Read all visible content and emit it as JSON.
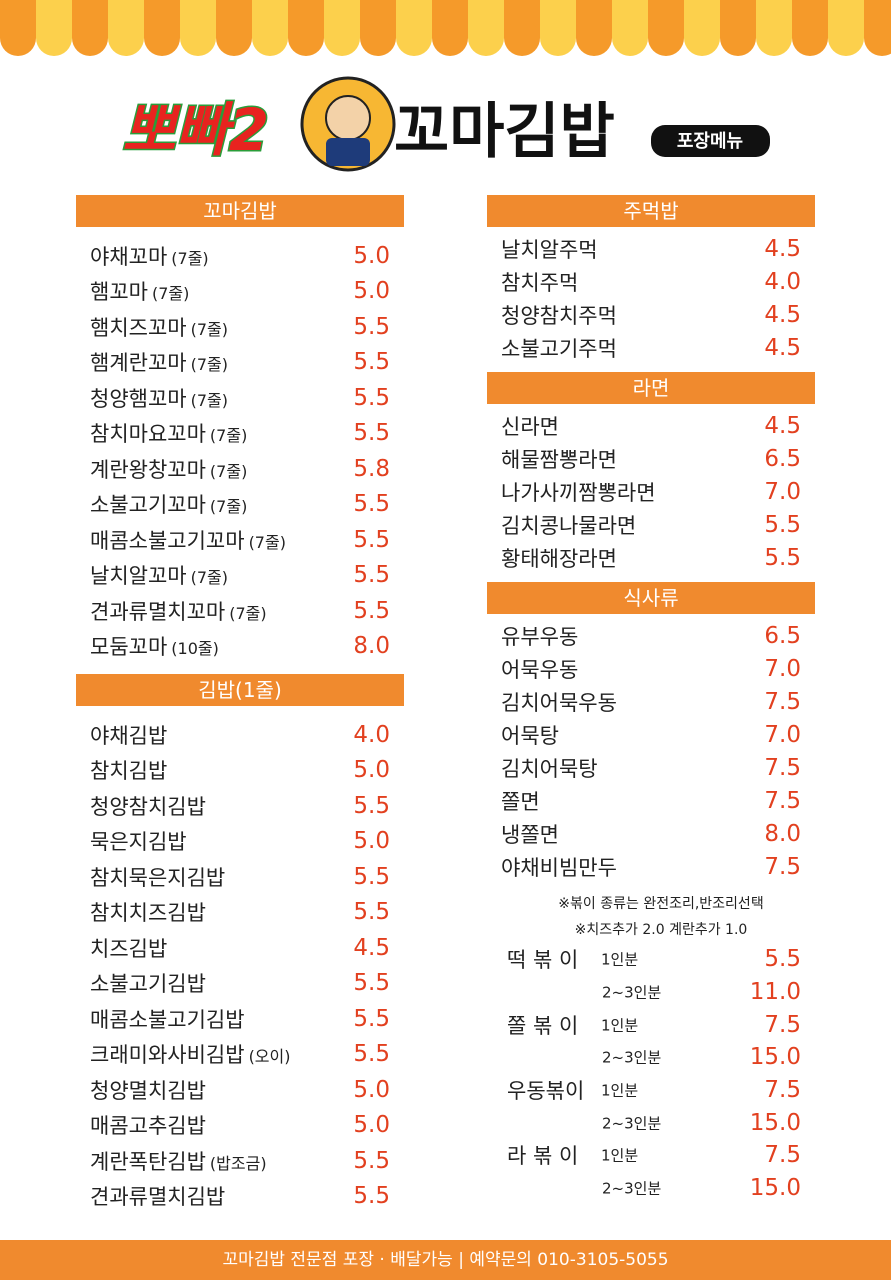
{
  "header": {
    "brand": "뽀빠2",
    "title": "꼬마김밥",
    "badge": "포장메뉴"
  },
  "left_sections": [
    {
      "title": "꼬마김밥",
      "items": [
        {
          "name": "야채꼬마",
          "note": "(7줄)",
          "price": "5.0"
        },
        {
          "name": "햄꼬마",
          "note": "(7줄)",
          "price": "5.0"
        },
        {
          "name": "햄치즈꼬마",
          "note": "(7줄)",
          "price": "5.5"
        },
        {
          "name": "햄계란꼬마",
          "note": "(7줄)",
          "price": "5.5"
        },
        {
          "name": "청양햄꼬마",
          "note": "(7줄)",
          "price": "5.5"
        },
        {
          "name": "참치마요꼬마",
          "note": "(7줄)",
          "price": "5.5"
        },
        {
          "name": "계란왕창꼬마",
          "note": "(7줄)",
          "price": "5.8"
        },
        {
          "name": "소불고기꼬마",
          "note": "(7줄)",
          "price": "5.5"
        },
        {
          "name": "매콤소불고기꼬마",
          "note": "(7줄)",
          "price": "5.5"
        },
        {
          "name": "날치알꼬마",
          "note": "(7줄)",
          "price": "5.5"
        },
        {
          "name": "견과류멸치꼬마",
          "note": "(7줄)",
          "price": "5.5"
        },
        {
          "name": "모둠꼬마",
          "note": "(10줄)",
          "price": "8.0"
        }
      ]
    },
    {
      "title": "김밥(1줄)",
      "items": [
        {
          "name": "야채김밥",
          "price": "4.0"
        },
        {
          "name": "참치김밥",
          "price": "5.0"
        },
        {
          "name": "청양참치김밥",
          "price": "5.5"
        },
        {
          "name": "묵은지김밥",
          "price": "5.0"
        },
        {
          "name": "참치묵은지김밥",
          "price": "5.5"
        },
        {
          "name": "참치치즈김밥",
          "price": "5.5"
        },
        {
          "name": "치즈김밥",
          "price": "4.5"
        },
        {
          "name": "소불고기김밥",
          "price": "5.5"
        },
        {
          "name": "매콤소불고기김밥",
          "price": "5.5"
        },
        {
          "name": "크래미와사비김밥",
          "note": "(오이)",
          "price": "5.5"
        },
        {
          "name": "청양멸치김밥",
          "price": "5.0"
        },
        {
          "name": "매콤고추김밥",
          "price": "5.0"
        },
        {
          "name": "계란폭탄김밥",
          "note": "(밥조금)",
          "price": "5.5"
        },
        {
          "name": "견과류멸치김밥",
          "price": "5.5"
        }
      ]
    }
  ],
  "right_sections": [
    {
      "title": "주먹밥",
      "items": [
        {
          "name": "날치알주먹",
          "price": "4.5"
        },
        {
          "name": "참치주먹",
          "price": "4.0"
        },
        {
          "name": "청양참치주먹",
          "price": "4.5"
        },
        {
          "name": "소불고기주먹",
          "price": "4.5"
        }
      ]
    },
    {
      "title": "라면",
      "items": [
        {
          "name": "신라면",
          "price": "4.5"
        },
        {
          "name": "해물짬뽕라면",
          "price": "6.5"
        },
        {
          "name": "나가사끼짬뽕라면",
          "price": "7.0"
        },
        {
          "name": "김치콩나물라면",
          "price": "5.5"
        },
        {
          "name": "황태해장라면",
          "price": "5.5"
        }
      ]
    },
    {
      "title": "식사류",
      "items": [
        {
          "name": "유부우동",
          "price": "6.5"
        },
        {
          "name": "어묵우동",
          "price": "7.0"
        },
        {
          "name": "김치어묵우동",
          "price": "7.5"
        },
        {
          "name": "어묵탕",
          "price": "7.0"
        },
        {
          "name": "김치어묵탕",
          "price": "7.5"
        },
        {
          "name": "쫄면",
          "price": "7.5"
        },
        {
          "name": "냉쫄면",
          "price": "8.0"
        },
        {
          "name": "야채비빔만두",
          "price": "7.5"
        }
      ]
    }
  ],
  "notes": [
    "※볶이 종류는 완전조리,반조리선택",
    "※치즈추가 2.0 계란추가 1.0"
  ],
  "bokki": [
    {
      "name": "떡 볶 이",
      "options": [
        {
          "portion": "1인분",
          "price": "5.5"
        },
        {
          "portion": "2~3인분",
          "price": "11.0"
        }
      ]
    },
    {
      "name": "쫄 볶 이",
      "options": [
        {
          "portion": "1인분",
          "price": "7.5"
        },
        {
          "portion": "2~3인분",
          "price": "15.0"
        }
      ]
    },
    {
      "name": "우동볶이",
      "options": [
        {
          "portion": "1인분",
          "price": "7.5"
        },
        {
          "portion": "2~3인분",
          "price": "15.0"
        }
      ]
    },
    {
      "name": "라 볶 이",
      "options": [
        {
          "portion": "1인분",
          "price": "7.5"
        },
        {
          "portion": "2~3인분",
          "price": "15.0"
        }
      ]
    }
  ],
  "footer": "꼬마김밥 전문점 포장 · 배달가능 | 예약문의 010-3105-5055"
}
